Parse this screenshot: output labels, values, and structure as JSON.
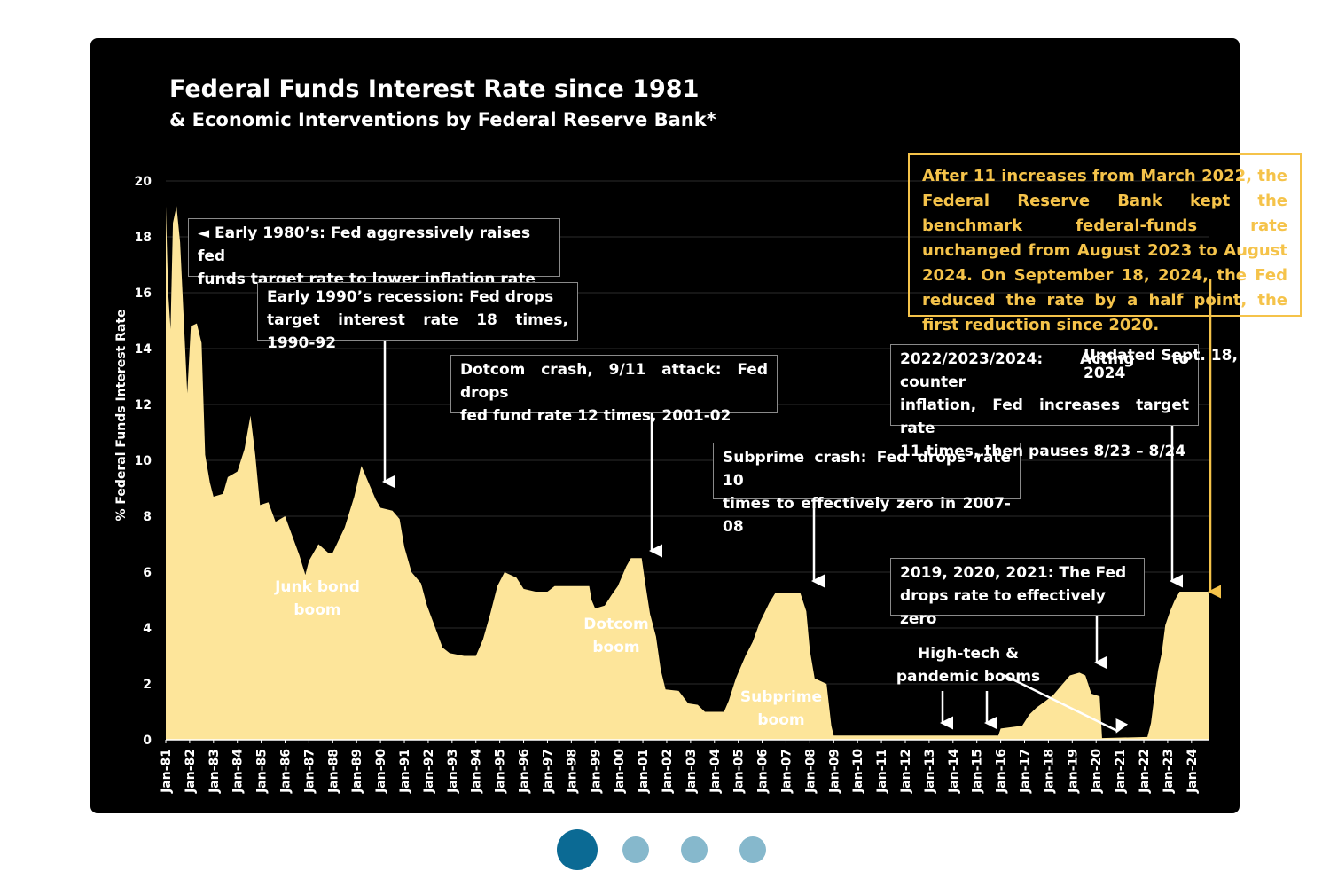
{
  "chart_data": {
    "type": "area",
    "title": "Federal Funds Interest Rate since 1981",
    "subtitle": "& Economic Interventions by Federal Reserve Bank*",
    "ylabel": "% Federal Funds Interest Rate",
    "ylim": [
      0,
      20
    ],
    "yticks": [
      "0",
      "2",
      "4",
      "6",
      "8",
      "10",
      "12",
      "14",
      "16",
      "18",
      "20"
    ],
    "xlim": [
      1981.0,
      2024.75
    ],
    "xticks": [
      "Jan-81",
      "Jan-82",
      "Jan-83",
      "Jan-84",
      "Jan-85",
      "Jan-86",
      "Jan-87",
      "Jan-88",
      "Jan-89",
      "Jan-90",
      "Jan-91",
      "Jan-92",
      "Jan-93",
      "Jan-94",
      "Jan-95",
      "Jan-96",
      "Jan-97",
      "Jan-98",
      "Jan-99",
      "Jan-00",
      "Jan-01",
      "Jan-02",
      "Jan-03",
      "Jan-04",
      "Jan-05",
      "Jan-06",
      "Jan-07",
      "Jan-08",
      "Jan-09",
      "Jan-10",
      "Jan-11",
      "Jan-12",
      "Jan-13",
      "Jan-14",
      "Jan-15",
      "Jan-16",
      "Jan-17",
      "Jan-18",
      "Jan-19",
      "Jan-20",
      "Jan-21",
      "Jan-22",
      "Jan-23",
      "Jan-24"
    ],
    "fill_color": "#fde59a",
    "series": [
      {
        "name": "Federal Funds Rate",
        "points": [
          [
            1981.0,
            19.1
          ],
          [
            1981.1,
            16.0
          ],
          [
            1981.2,
            14.7
          ],
          [
            1981.3,
            18.5
          ],
          [
            1981.45,
            19.1
          ],
          [
            1981.6,
            17.8
          ],
          [
            1981.75,
            15.1
          ],
          [
            1981.9,
            12.4
          ],
          [
            1982.05,
            14.8
          ],
          [
            1982.3,
            14.9
          ],
          [
            1982.5,
            14.2
          ],
          [
            1982.65,
            10.2
          ],
          [
            1982.85,
            9.2
          ],
          [
            1983.0,
            8.7
          ],
          [
            1983.4,
            8.8
          ],
          [
            1983.6,
            9.4
          ],
          [
            1984.0,
            9.6
          ],
          [
            1984.3,
            10.4
          ],
          [
            1984.55,
            11.6
          ],
          [
            1984.75,
            10.2
          ],
          [
            1984.95,
            8.4
          ],
          [
            1985.3,
            8.5
          ],
          [
            1985.6,
            7.8
          ],
          [
            1986.0,
            8.0
          ],
          [
            1986.3,
            7.3
          ],
          [
            1986.6,
            6.6
          ],
          [
            1986.85,
            5.9
          ],
          [
            1987.0,
            6.4
          ],
          [
            1987.4,
            7.0
          ],
          [
            1987.8,
            6.7
          ],
          [
            1988.0,
            6.7
          ],
          [
            1988.5,
            7.6
          ],
          [
            1988.9,
            8.7
          ],
          [
            1989.2,
            9.8
          ],
          [
            1989.5,
            9.2
          ],
          [
            1989.8,
            8.6
          ],
          [
            1990.0,
            8.3
          ],
          [
            1990.5,
            8.2
          ],
          [
            1990.8,
            7.9
          ],
          [
            1991.0,
            6.9
          ],
          [
            1991.3,
            6.0
          ],
          [
            1991.7,
            5.6
          ],
          [
            1991.95,
            4.8
          ],
          [
            1992.3,
            4.0
          ],
          [
            1992.6,
            3.3
          ],
          [
            1992.9,
            3.1
          ],
          [
            1993.5,
            3.0
          ],
          [
            1994.0,
            3.0
          ],
          [
            1994.3,
            3.6
          ],
          [
            1994.6,
            4.5
          ],
          [
            1994.9,
            5.5
          ],
          [
            1995.2,
            6.0
          ],
          [
            1995.7,
            5.8
          ],
          [
            1996.0,
            5.4
          ],
          [
            1996.5,
            5.3
          ],
          [
            1997.0,
            5.3
          ],
          [
            1997.3,
            5.5
          ],
          [
            1998.0,
            5.5
          ],
          [
            1998.75,
            5.5
          ],
          [
            1998.85,
            5.0
          ],
          [
            1999.0,
            4.7
          ],
          [
            1999.4,
            4.8
          ],
          [
            1999.7,
            5.2
          ],
          [
            1999.95,
            5.5
          ],
          [
            2000.3,
            6.2
          ],
          [
            2000.5,
            6.5
          ],
          [
            2000.95,
            6.5
          ],
          [
            2001.1,
            5.6
          ],
          [
            2001.3,
            4.5
          ],
          [
            2001.55,
            3.7
          ],
          [
            2001.75,
            2.5
          ],
          [
            2001.95,
            1.8
          ],
          [
            2002.5,
            1.75
          ],
          [
            2002.9,
            1.3
          ],
          [
            2003.3,
            1.25
          ],
          [
            2003.6,
            1.0
          ],
          [
            2004.4,
            1.0
          ],
          [
            2004.6,
            1.4
          ],
          [
            2004.9,
            2.2
          ],
          [
            2005.3,
            3.0
          ],
          [
            2005.6,
            3.5
          ],
          [
            2005.9,
            4.2
          ],
          [
            2006.3,
            4.9
          ],
          [
            2006.55,
            5.25
          ],
          [
            2007.6,
            5.25
          ],
          [
            2007.85,
            4.6
          ],
          [
            2008.0,
            3.2
          ],
          [
            2008.2,
            2.2
          ],
          [
            2008.7,
            2.0
          ],
          [
            2008.9,
            0.5
          ],
          [
            2009.0,
            0.15
          ],
          [
            2015.9,
            0.15
          ],
          [
            2016.0,
            0.4
          ],
          [
            2016.9,
            0.5
          ],
          [
            2017.2,
            0.9
          ],
          [
            2017.5,
            1.15
          ],
          [
            2017.9,
            1.4
          ],
          [
            2018.2,
            1.6
          ],
          [
            2018.5,
            1.9
          ],
          [
            2018.9,
            2.3
          ],
          [
            2019.3,
            2.4
          ],
          [
            2019.55,
            2.3
          ],
          [
            2019.8,
            1.65
          ],
          [
            2020.15,
            1.55
          ],
          [
            2020.25,
            0.06
          ],
          [
            2022.15,
            0.1
          ],
          [
            2022.3,
            0.6
          ],
          [
            2022.45,
            1.6
          ],
          [
            2022.6,
            2.5
          ],
          [
            2022.75,
            3.1
          ],
          [
            2022.9,
            4.1
          ],
          [
            2023.1,
            4.6
          ],
          [
            2023.3,
            5.0
          ],
          [
            2023.5,
            5.3
          ],
          [
            2024.7,
            5.3
          ],
          [
            2024.75,
            4.9
          ]
        ]
      }
    ],
    "annotations": {
      "early80s": [
        "◄ Early 1980’s: Fed aggressively raises fed",
        "funds target rate to lower inflation rate"
      ],
      "early90s": [
        "Early 1990’s recession: Fed drops",
        "target interest rate 18 times, 1990-92"
      ],
      "dotcom_crash": [
        "Dotcom crash, 9/11 attack: Fed drops",
        "fed fund rate 12 times, 2001-02"
      ],
      "subprime_crash": [
        "Subprime crash: Fed drops rate 10",
        "times to effectively zero in 2007-08"
      ],
      "y2022": [
        "2022/2023/2024: Acting to counter",
        "inflation, Fed increases target rate",
        "11 times, then pauses 8/23 – 8/24"
      ],
      "y2019": [
        "2019, 2020, 2021: The Fed",
        "drops rate to effectively zero"
      ],
      "note": "After 11 increases from March 2022, the Federal Reserve Bank kept the benchmark federal-funds rate unchanged from August 2023 to August 2024. On September 18, 2024, the Fed reduced the rate by a half point, the first reduction since 2020.",
      "updated": "Updated Sept. 18, 2024",
      "booms": {
        "junk": [
          "Junk bond",
          "boom"
        ],
        "dotcom": [
          "Dotcom",
          "boom"
        ],
        "subprime": [
          "Subprime",
          "boom"
        ],
        "hightech": [
          "High-tech &",
          "pandemic booms"
        ]
      }
    }
  },
  "carousel": {
    "count": 4,
    "active_index": 0,
    "active_color": "#0b6a94",
    "inactive_color": "#86b8cc"
  }
}
